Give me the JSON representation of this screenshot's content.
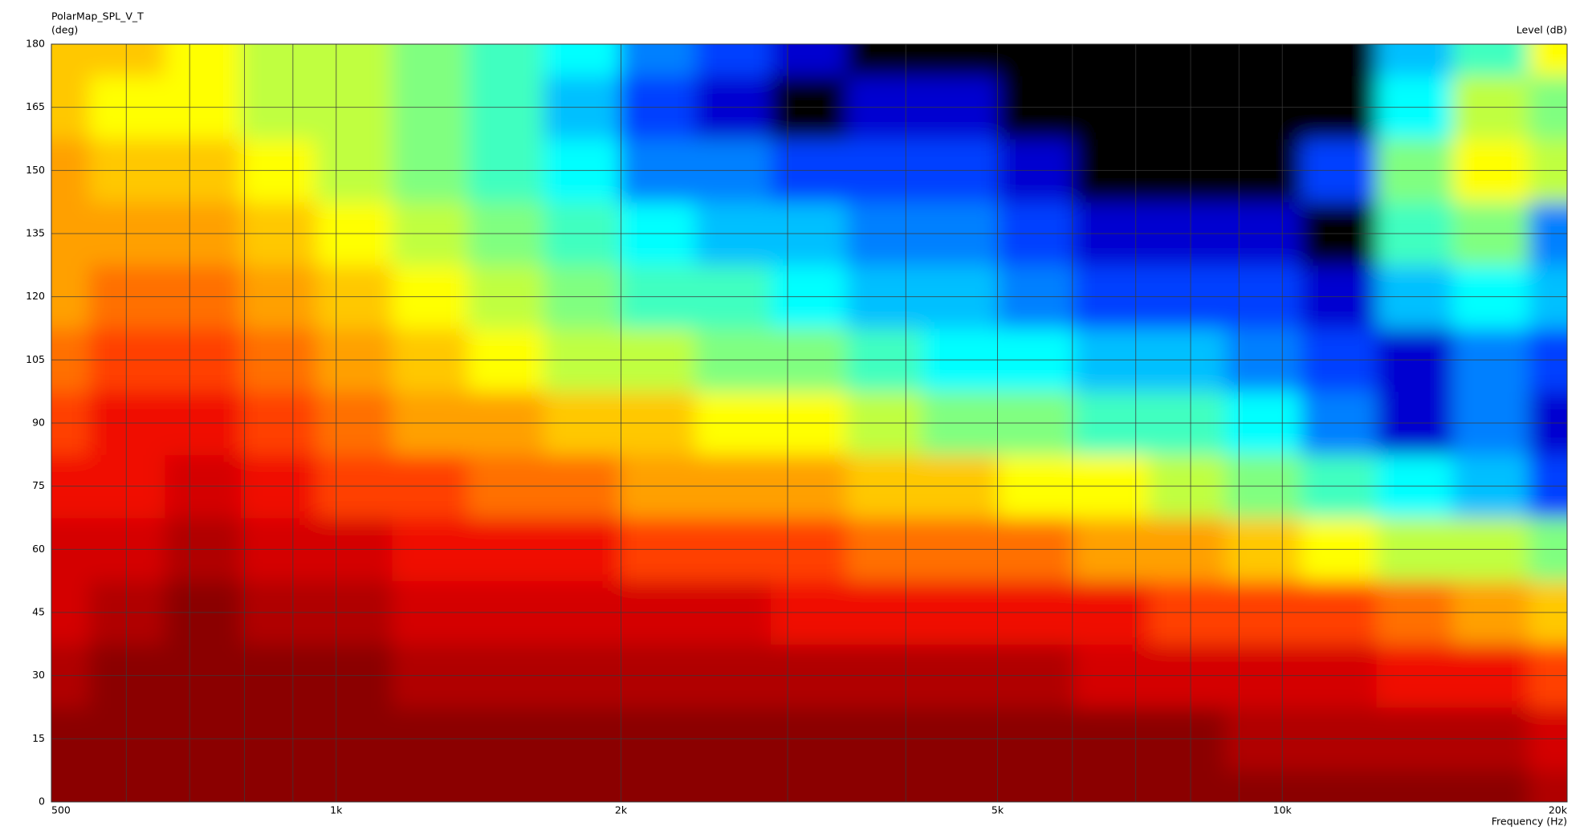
{
  "chart_data": {
    "type": "heatmap",
    "title": "PolarMap_SPL_V_T",
    "y_label": "(deg)",
    "colorbar_label": "Level (dB)",
    "x_label": "Frequency (Hz)",
    "xscale": "log",
    "grid": true,
    "xlim": [
      500,
      20000
    ],
    "ylim": [
      0,
      180
    ],
    "xticks": [
      500,
      {
        "value": 1000,
        "label": "1k"
      },
      {
        "value": 2000,
        "label": "2k"
      },
      {
        "value": 5000,
        "label": "5k"
      },
      {
        "value": 10000,
        "label": "10k"
      },
      {
        "value": 20000,
        "label": "20k"
      }
    ],
    "xminor": [
      600,
      700,
      800,
      900,
      3000,
      4000,
      6000,
      7000,
      8000,
      9000
    ],
    "yticks": [
      0,
      15,
      30,
      45,
      60,
      75,
      90,
      105,
      120,
      135,
      150,
      165,
      180
    ],
    "x": [
      500,
      601,
      723,
      869,
      1045,
      1257,
      1511,
      1817,
      2185,
      2627,
      3158,
      3797,
      4566,
      5490,
      6601,
      7937,
      9543,
      11474,
      13796,
      16588,
      20000
    ],
    "y": [
      0,
      15,
      30,
      45,
      60,
      75,
      90,
      105,
      120,
      135,
      150,
      165,
      180
    ],
    "z": [
      [
        0,
        0,
        0,
        0,
        0,
        0,
        -1,
        -1,
        -1,
        -1,
        -1,
        -1,
        -1,
        -1,
        -1,
        -1,
        -1,
        -1,
        -2,
        -2,
        -3
      ],
      [
        -2,
        -1,
        0,
        0,
        0,
        -1,
        -2,
        -2,
        -2,
        -2,
        -2,
        -2,
        -2,
        -2,
        -2,
        -2,
        -3,
        -3,
        -5,
        -5,
        -6
      ],
      [
        -4,
        -2,
        0,
        -1,
        -2,
        -3,
        -3,
        -3,
        -4,
        -4,
        -4,
        -5,
        -5,
        -5,
        -6,
        -6,
        -7,
        -8,
        -10,
        -9,
        -12
      ],
      [
        -6,
        -3,
        -1,
        -3,
        -5,
        -6,
        -6,
        -7,
        -8,
        -8,
        -9,
        -9,
        -10,
        -10,
        -11,
        -12,
        -13,
        -14,
        -16,
        -19,
        -22
      ],
      [
        -8,
        -6,
        -4,
        -6,
        -8,
        -9,
        -10,
        -11,
        -12,
        -13,
        -14,
        -15,
        -16,
        -17,
        -18,
        -19,
        -21,
        -24,
        -27,
        -28,
        -32
      ],
      [
        -11,
        -9,
        -7,
        -9,
        -12,
        -13,
        -15,
        -16,
        -18,
        -19,
        -20,
        -22,
        -23,
        -24,
        -25,
        -27,
        -30,
        -34,
        -38,
        -40,
        -45
      ],
      [
        -13,
        -11,
        -10,
        -13,
        -16,
        -18,
        -20,
        -21,
        -23,
        -25,
        -26,
        -28,
        -30,
        -32,
        -34,
        -35,
        -37,
        -42,
        -50,
        -44,
        -48
      ],
      [
        -15,
        -14,
        -13,
        -16,
        -20,
        -22,
        -25,
        -27,
        -29,
        -30,
        -32,
        -34,
        -36,
        -37,
        -39,
        -40,
        -42,
        -46,
        -48,
        -44,
        -47
      ],
      [
        -18,
        -17,
        -16,
        -19,
        -23,
        -25,
        -28,
        -30,
        -33,
        -35,
        -37,
        -39,
        -41,
        -43,
        -45,
        -46,
        -47,
        -50,
        -40,
        -36,
        -40
      ],
      [
        -19,
        -20,
        -20,
        -22,
        -25,
        -28,
        -31,
        -34,
        -37,
        -39,
        -41,
        -43,
        -44,
        -46,
        -49,
        -50,
        -50,
        -53,
        -35,
        -30,
        -42
      ],
      [
        -20,
        -22,
        -23,
        -25,
        -27,
        -30,
        -33,
        -37,
        -42,
        -44,
        -45,
        -46,
        -46,
        -50,
        -53,
        -53,
        -53,
        -46,
        -30,
        -26,
        -28
      ],
      [
        -22,
        -24,
        -25,
        -27,
        -28,
        -32,
        -35,
        -40,
        -47,
        -50,
        -52,
        -50,
        -48,
        -51,
        -53,
        -53,
        -53,
        -53,
        -36,
        -27,
        -30
      ],
      [
        -21,
        -23,
        -25,
        -27,
        -29,
        -31,
        -34,
        -38,
        -42,
        -46,
        -50,
        -52,
        -52,
        -53,
        -53,
        -53,
        -53,
        -53,
        -40,
        -33,
        -25
      ]
    ],
    "colorscale": {
      "levels": [
        -3,
        -6,
        -9,
        -12,
        -15,
        -18,
        -21,
        -24,
        -27,
        -30,
        -33,
        -36,
        -39,
        -42,
        -45,
        -48,
        -51
      ],
      "colors": [
        "#8b0000",
        "#b00000",
        "#d40000",
        "#f01000",
        "#ff4000",
        "#ff7000",
        "#ffa000",
        "#ffc800",
        "#ffff00",
        "#c0ff40",
        "#80ff80",
        "#40ffc0",
        "#00ffff",
        "#00c0ff",
        "#0080ff",
        "#0040ff",
        "#0000d0",
        "#000000"
      ]
    }
  }
}
